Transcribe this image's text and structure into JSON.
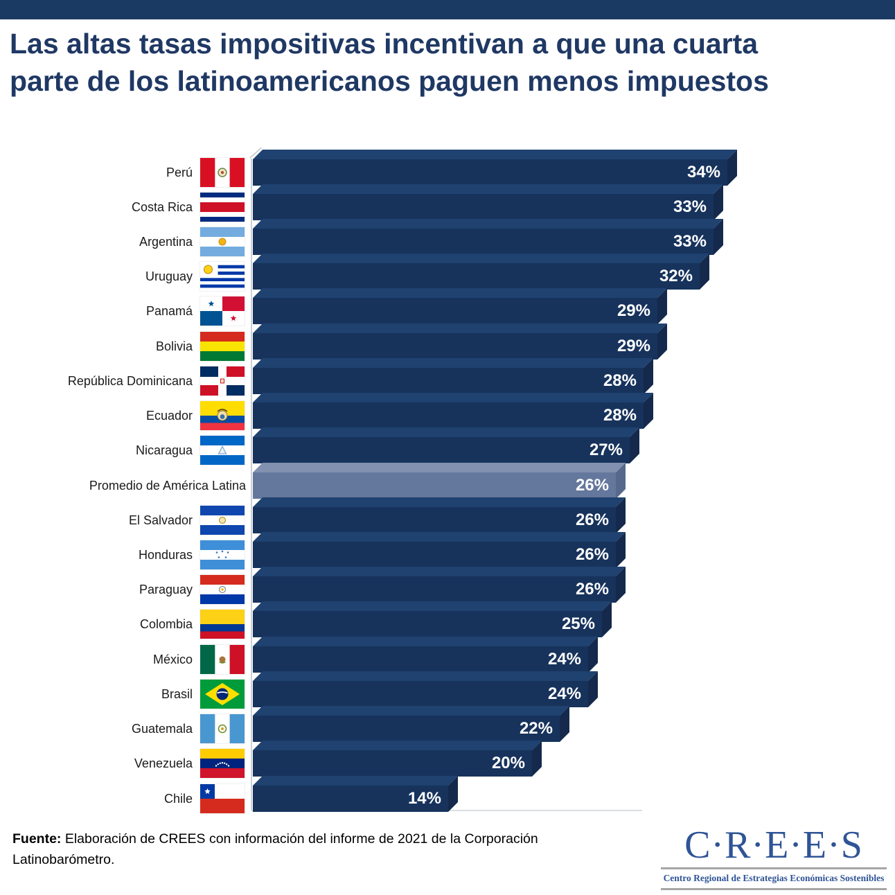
{
  "header": {
    "title": "Las altas tasas impositivas incentivan a que una cuarta parte de los latinoamericanos paguen menos impuestos"
  },
  "colors": {
    "top_band": "#1B3A63",
    "title": "#1F3864",
    "bar_front": "#17335C",
    "bar_top": "#1F4270",
    "bar_side": "#14294C",
    "highlight_front": "#64779C",
    "highlight_top": "#8291AF",
    "highlight_side": "#56688B",
    "value_text": "#FFFFFF",
    "label_text": "#1A1A1A",
    "logo_blue": "#2F5496"
  },
  "chart_data": {
    "type": "bar",
    "orientation": "horizontal",
    "title": "Las altas tasas impositivas incentivan a que una cuarta parte de los latinoamericanos paguen menos impuestos",
    "value_unit": "%",
    "xlim": [
      0,
      34
    ],
    "legend": "none",
    "grid": false,
    "rows": [
      {
        "label": "Perú",
        "value": 34,
        "display": "34%",
        "flag": "flag-peru",
        "highlight": false
      },
      {
        "label": "Costa Rica",
        "value": 33,
        "display": "33%",
        "flag": "flag-costa-rica",
        "highlight": false
      },
      {
        "label": "Argentina",
        "value": 33,
        "display": "33%",
        "flag": "flag-argentina",
        "highlight": false
      },
      {
        "label": "Uruguay",
        "value": 32,
        "display": "32%",
        "flag": "flag-uruguay",
        "highlight": false
      },
      {
        "label": "Panamá",
        "value": 29,
        "display": "29%",
        "flag": "flag-panama",
        "highlight": false
      },
      {
        "label": "Bolivia",
        "value": 29,
        "display": "29%",
        "flag": "flag-bolivia",
        "highlight": false
      },
      {
        "label": "República Dominicana",
        "value": 28,
        "display": "28%",
        "flag": "flag-republica-dominicana",
        "highlight": false
      },
      {
        "label": "Ecuador",
        "value": 28,
        "display": "28%",
        "flag": "flag-ecuador",
        "highlight": false
      },
      {
        "label": "Nicaragua",
        "value": 27,
        "display": "27%",
        "flag": "flag-nicaragua",
        "highlight": false
      },
      {
        "label": "Promedio de América Latina",
        "value": 26,
        "display": "26%",
        "flag": null,
        "highlight": true
      },
      {
        "label": "El Salvador",
        "value": 26,
        "display": "26%",
        "flag": "flag-el-salvador",
        "highlight": false
      },
      {
        "label": "Honduras",
        "value": 26,
        "display": "26%",
        "flag": "flag-honduras",
        "highlight": false
      },
      {
        "label": "Paraguay",
        "value": 26,
        "display": "26%",
        "flag": "flag-paraguay",
        "highlight": false
      },
      {
        "label": "Colombia",
        "value": 25,
        "display": "25%",
        "flag": "flag-colombia",
        "highlight": false
      },
      {
        "label": "México",
        "value": 24,
        "display": "24%",
        "flag": "flag-mexico",
        "highlight": false
      },
      {
        "label": "Brasil",
        "value": 24,
        "display": "24%",
        "flag": "flag-brasil",
        "highlight": false
      },
      {
        "label": "Guatemala",
        "value": 22,
        "display": "22%",
        "flag": "flag-guatemala",
        "highlight": false
      },
      {
        "label": "Venezuela",
        "value": 20,
        "display": "20%",
        "flag": "flag-venezuela",
        "highlight": false
      },
      {
        "label": "Chile",
        "value": 14,
        "display": "14%",
        "flag": "flag-chile",
        "highlight": false
      }
    ]
  },
  "footer": {
    "source_bold": "Fuente:",
    "source_text": "Elaboración de CREES con información del informe de 2021 de la Corporación Latinobarómetro.",
    "logo": {
      "acronym": "C·R·E·E·S",
      "tagline": "Centro Regional de Estrategias Económicas Sostenibles"
    }
  }
}
